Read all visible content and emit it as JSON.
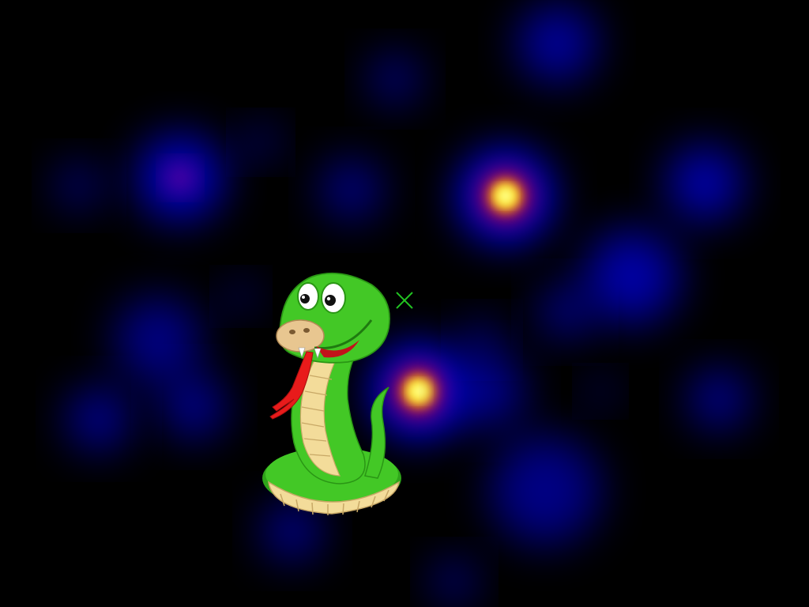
{
  "scene": {
    "background_color": "#000000",
    "description_label": ""
  },
  "heatmap": {
    "colormap": [
      "#000000",
      "#0000ff",
      "#ff0000",
      "#ffff00",
      "#ffffff"
    ],
    "hotspots": [
      {
        "id": "hot-1",
        "intensity": 1.0
      },
      {
        "id": "hot-2",
        "intensity": 0.95
      },
      {
        "id": "hot-3",
        "intensity": 0.55
      },
      {
        "id": "hot-4",
        "intensity": 0.45
      },
      {
        "id": "hot-5",
        "intensity": 0.4
      },
      {
        "id": "hot-6",
        "intensity": 0.35
      },
      {
        "id": "hot-7",
        "intensity": 0.3
      },
      {
        "id": "hot-8",
        "intensity": 0.3
      },
      {
        "id": "hot-9",
        "intensity": 0.3
      },
      {
        "id": "hot-10",
        "intensity": 0.28
      },
      {
        "id": "hot-11",
        "intensity": 0.25
      },
      {
        "id": "hot-12",
        "intensity": 0.25
      },
      {
        "id": "hot-13",
        "intensity": 0.22
      },
      {
        "id": "hot-14",
        "intensity": 0.22
      },
      {
        "id": "hot-15",
        "intensity": 0.2
      }
    ]
  },
  "stimulus": {
    "object_icon": "cartoon-snake-icon",
    "body_color": "#3cc41e",
    "belly_color": "#f3dc9a",
    "tongue_color": "#e81b1b"
  },
  "fixation": {
    "icon": "cross-marker-icon",
    "color": "#22c422"
  }
}
